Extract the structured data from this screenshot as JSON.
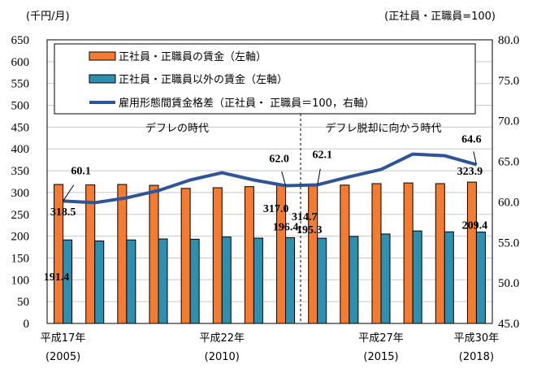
{
  "chart_data": {
    "type": "bar+line",
    "categories": [
      "2005",
      "2006",
      "2007",
      "2008",
      "2009",
      "2010",
      "2011",
      "2012",
      "2013",
      "2014",
      "2015",
      "2016",
      "2017",
      "2018"
    ],
    "x_tick_labels": [
      {
        "index": 0,
        "line1": "平成17年",
        "line2": "(2005)"
      },
      {
        "index": 5,
        "line1": "平成22年",
        "line2": "(2010)"
      },
      {
        "index": 10,
        "line1": "平成27年",
        "line2": "(2015)"
      },
      {
        "index": 13,
        "line1": "平成30年",
        "line2": "(2018)"
      }
    ],
    "left_axis": {
      "label": "(千円/月)",
      "ylim": [
        0,
        650
      ],
      "step": 50
    },
    "right_axis": {
      "label": "(正社員・正職員=100)",
      "ylim": [
        45,
        80
      ],
      "step": 5
    },
    "grid": true,
    "legend_position": "top-inside",
    "series": [
      {
        "name": "正社員・正職員の賃金（左軸）",
        "type": "bar",
        "axis": "left",
        "color": "#F47B30",
        "values": [
          318.5,
          317.5,
          318.5,
          316.5,
          309.5,
          311.0,
          313.5,
          317.0,
          314.7,
          317.0,
          320.4,
          322.0,
          320.4,
          323.9
        ]
      },
      {
        "name": "正社員・正職員以外の賃金（左軸）",
        "type": "bar",
        "axis": "left",
        "color": "#2E90B0",
        "values": [
          191.4,
          189.0,
          191.4,
          193.6,
          193.0,
          198.0,
          195.5,
          196.4,
          195.3,
          199.5,
          205.0,
          212.0,
          210.0,
          209.4
        ]
      },
      {
        "name": "雇用形態間賃金格差（正社員・ 正職員＝100，右軸）",
        "type": "line",
        "axis": "right",
        "color": "#2F5597",
        "values": [
          60.1,
          59.9,
          60.5,
          61.4,
          62.7,
          63.6,
          62.7,
          62.0,
          62.1,
          63.1,
          64.0,
          65.9,
          65.7,
          64.6
        ]
      }
    ],
    "data_labels": [
      {
        "series": 2,
        "index": 0,
        "text": "60.1"
      },
      {
        "series": 0,
        "index": 0,
        "text": "318.5"
      },
      {
        "series": 1,
        "index": 0,
        "text": "191.4"
      },
      {
        "series": 2,
        "index": 7,
        "text": "62.0"
      },
      {
        "series": 0,
        "index": 7,
        "text": "317.0"
      },
      {
        "series": 1,
        "index": 7,
        "text": "196.4"
      },
      {
        "series": 2,
        "index": 8,
        "text": "62.1"
      },
      {
        "series": 0,
        "index": 8,
        "text": "314.7"
      },
      {
        "series": 1,
        "index": 8,
        "text": "195.3"
      },
      {
        "series": 2,
        "index": 13,
        "text": "64.6"
      },
      {
        "series": 0,
        "index": 13,
        "text": "323.9"
      },
      {
        "series": 1,
        "index": 13,
        "text": "209.4"
      }
    ],
    "annotations": {
      "period1": "デフレの時代",
      "period2": "デフレ脱却に向かう時代"
    }
  }
}
